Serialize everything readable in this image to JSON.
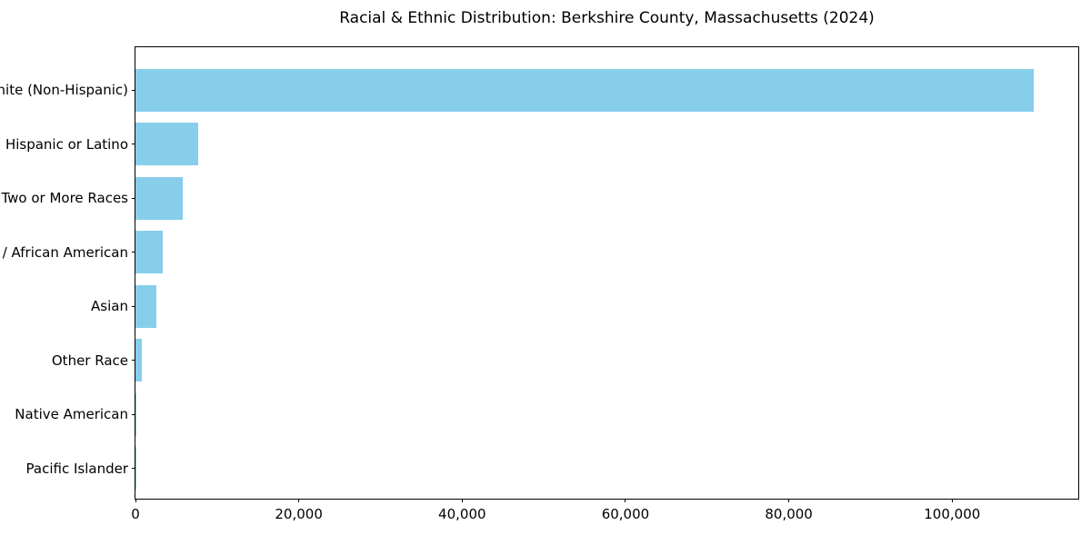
{
  "chart_data": {
    "type": "bar",
    "orientation": "horizontal",
    "title": "Racial & Ethnic Distribution: Berkshire County, Massachusetts (2024)",
    "categories": [
      "White (Non-Hispanic)",
      "Hispanic or Latino",
      "Two or More Races",
      "Black / African American",
      "Asian",
      "Other Race",
      "Native American",
      "Pacific Islander"
    ],
    "values": [
      110000,
      7700,
      5800,
      3300,
      2600,
      800,
      150,
      30
    ],
    "xlabel": "",
    "ylabel": "",
    "xlim": [
      0,
      115444
    ],
    "xticks": [
      0,
      20000,
      40000,
      60000,
      80000,
      100000
    ],
    "xtick_labels": [
      "0",
      "20,000",
      "40,000",
      "60,000",
      "80,000",
      "100,000"
    ],
    "grid": false,
    "legend": "none",
    "bar_color": "#87ceeb",
    "frame_color": "#000000",
    "background_color": "#ffffff"
  }
}
